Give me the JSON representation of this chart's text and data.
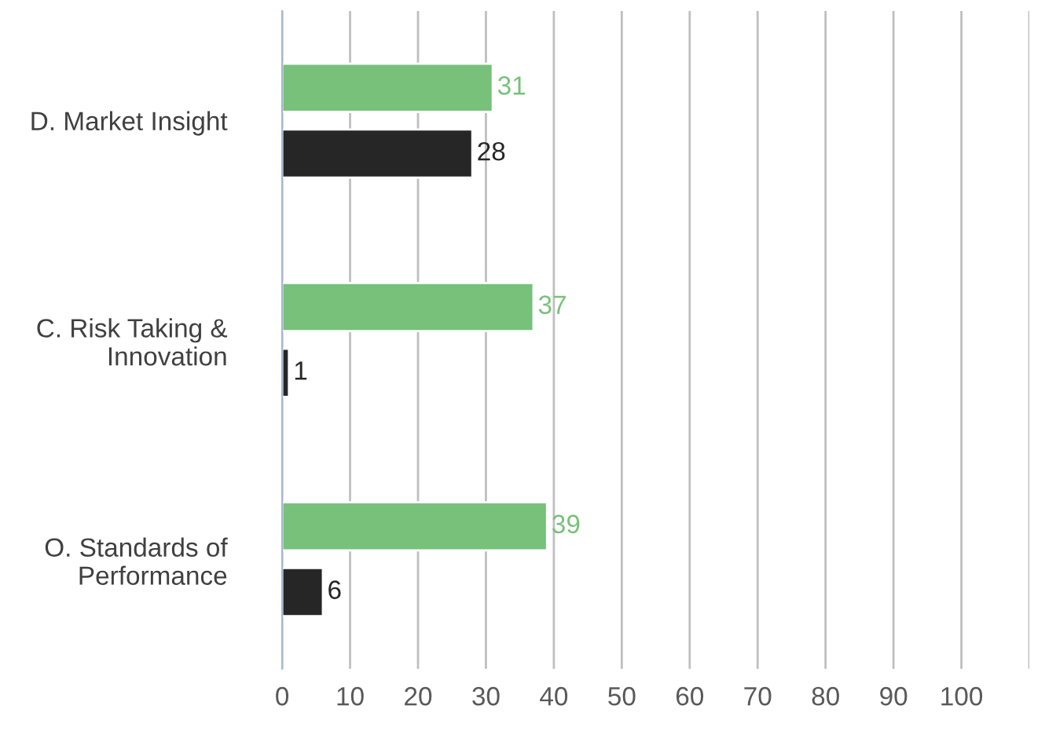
{
  "chart_data": {
    "type": "bar",
    "orientation": "horizontal",
    "categories": [
      "D. Market Insight",
      "C. Risk Taking &\nInnovation",
      "O. Standards of\nPerformance"
    ],
    "series": [
      {
        "color": "#77c17a",
        "values": [
          31,
          37,
          39
        ]
      },
      {
        "color": "#262626",
        "values": [
          28,
          1,
          6
        ]
      }
    ],
    "xlim": [
      0,
      110
    ],
    "xticks": [
      0,
      10,
      20,
      30,
      40,
      50,
      60,
      70,
      80,
      90,
      100,
      {
        "value": 110,
        "label": null
      }
    ],
    "grid": "x",
    "data_labels": true,
    "legend": false
  }
}
